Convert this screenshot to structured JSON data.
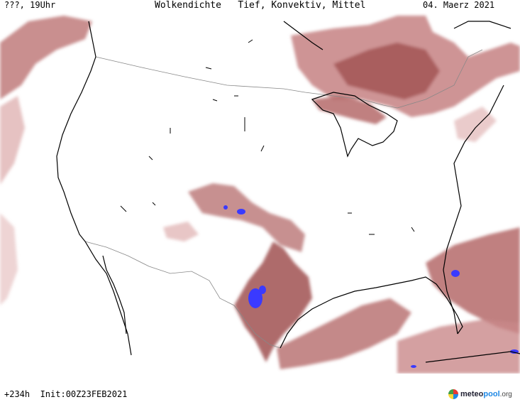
{
  "header": {
    "valid_time": "???, 19Uhr",
    "title": "Wolkendichte   Tief, Konvektiv, Mittel",
    "date": "04. Maerz 2021"
  },
  "footer": {
    "run_info": "+234h  Init:00Z23FEB2021",
    "logo": {
      "meteo": "meteo",
      "pool": "pool",
      "org": ".org"
    }
  },
  "colors": {
    "cloud_light": "#dca8a8",
    "cloud_mid": "#c27d7d",
    "cloud_dark": "#a35656",
    "convective_core": "#3a3aff",
    "coastline": "#000000",
    "borders": "#888888"
  }
}
